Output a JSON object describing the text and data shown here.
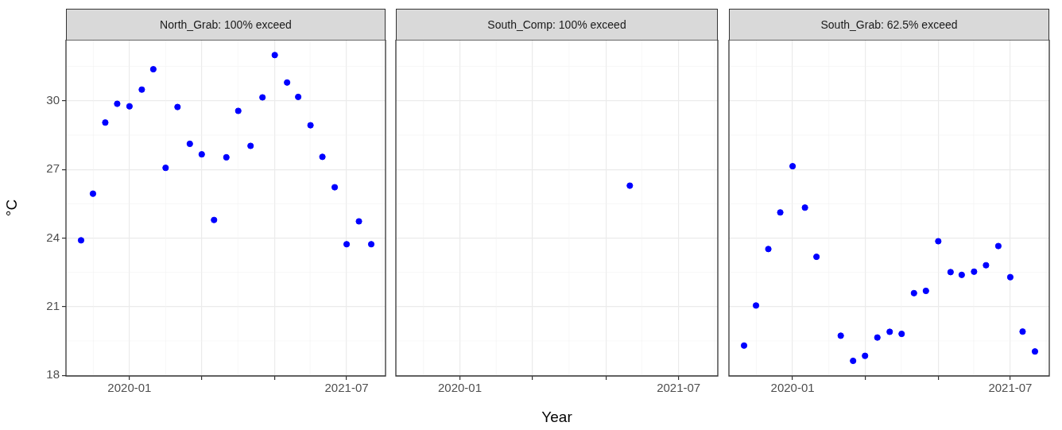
{
  "chart_data": [
    {
      "type": "scatter",
      "title": "North_Grab: 100% exceed",
      "ylabel": "°C",
      "color": "#0000ff",
      "marker": "circle",
      "grid": true,
      "x": [
        "2019-09",
        "2019-10",
        "2019-11",
        "2019-12",
        "2020-01",
        "2020-02",
        "2020-03",
        "2020-04",
        "2020-05",
        "2020-06",
        "2020-07",
        "2020-08",
        "2020-09",
        "2020-10",
        "2020-11",
        "2020-12",
        "2021-01",
        "2021-02",
        "2021-03",
        "2021-04",
        "2021-05",
        "2021-06",
        "2021-07",
        "2021-08",
        "2021-09"
      ],
      "values": [
        23.9,
        25.94,
        29.05,
        29.87,
        29.76,
        30.49,
        31.38,
        27.07,
        29.73,
        28.12,
        27.66,
        24.79,
        27.53,
        29.56,
        28.03,
        30.15,
        32.0,
        30.8,
        30.17,
        28.93,
        27.55,
        26.22,
        23.73,
        24.73,
        23.73
      ],
      "xlim": [
        "2019-07-25",
        "2021-10-07"
      ],
      "xticks": [
        {
          "value": "2020-01",
          "label": "2020-01"
        },
        {
          "value": "2020-07",
          "label": null
        },
        {
          "value": "2021-01",
          "label": null
        },
        {
          "value": "2021-07",
          "label": "2021-07"
        }
      ],
      "ylim": [
        17.97,
        32.67
      ],
      "yticks": [
        18,
        21,
        24,
        27,
        30
      ]
    },
    {
      "type": "scatter",
      "title": "South_Comp: 100% exceed",
      "xlabel": "Year",
      "color": "#0000ff",
      "marker": "circle",
      "grid": true,
      "tick_labels": "x",
      "x": [
        "2021-03"
      ],
      "values": [
        26.29
      ],
      "xlim": [
        "2019-07-25",
        "2021-10-07"
      ],
      "xticks": [
        {
          "value": "2020-01",
          "label": "2020-01"
        },
        {
          "value": "2020-07",
          "label": null
        },
        {
          "value": "2021-01",
          "label": null
        },
        {
          "value": "2021-07",
          "label": "2021-07"
        }
      ],
      "ylim": [
        17.97,
        32.67
      ],
      "yticks": [
        18,
        21,
        24,
        27,
        30
      ]
    },
    {
      "type": "scatter",
      "title": "South_Grab: 62.5% exceed",
      "color": "#0000ff",
      "marker": "circle",
      "grid": true,
      "tick_labels": "x",
      "x": [
        "2019-09",
        "2019-10",
        "2019-11",
        "2019-12",
        "2020-01",
        "2020-02",
        "2020-03",
        "2020-05",
        "2020-06",
        "2020-07",
        "2020-08",
        "2020-09",
        "2020-10",
        "2020-11",
        "2020-12",
        "2021-01",
        "2021-02",
        "2021-03",
        "2021-04",
        "2021-05",
        "2021-06",
        "2021-07",
        "2021-08",
        "2021-09"
      ],
      "values": [
        19.3,
        21.05,
        23.52,
        25.12,
        27.14,
        25.33,
        23.18,
        19.73,
        18.63,
        18.85,
        19.65,
        19.9,
        19.81,
        21.59,
        21.69,
        23.86,
        22.51,
        22.39,
        22.53,
        22.81,
        23.65,
        22.29,
        19.91,
        19.04
      ],
      "xlim": [
        "2019-07-25",
        "2021-10-07"
      ],
      "xticks": [
        {
          "value": "2020-01",
          "label": "2020-01"
        },
        {
          "value": "2020-07",
          "label": null
        },
        {
          "value": "2021-01",
          "label": null
        },
        {
          "value": "2021-07",
          "label": "2021-07"
        }
      ],
      "ylim": [
        17.97,
        32.67
      ],
      "yticks": [
        18,
        21,
        24,
        27,
        30
      ]
    }
  ]
}
